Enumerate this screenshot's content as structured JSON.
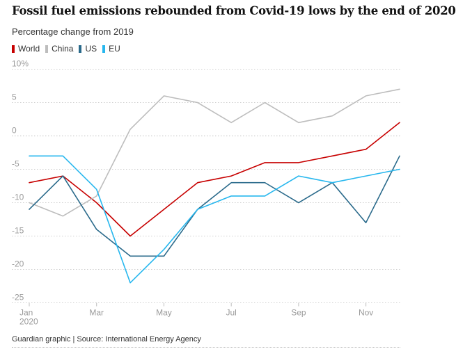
{
  "header": {
    "title": "Fossil fuel emissions rebounded from Covid-19 lows by the end of 2020",
    "subtitle": "Percentage change from 2019"
  },
  "footer": {
    "source": "Guardian graphic | Source: International Energy Agency"
  },
  "chart_data": {
    "type": "line",
    "title": "Fossil fuel emissions rebounded from Covid-19 lows by the end of 2020",
    "subtitle": "Percentage change from 2019",
    "x": [
      "Jan 2020",
      "Feb 2020",
      "Mar 2020",
      "Apr 2020",
      "May 2020",
      "Jun 2020",
      "Jul 2020",
      "Aug 2020",
      "Sep 2020",
      "Oct 2020",
      "Nov 2020",
      "Dec 2020"
    ],
    "x_tick_labels": [
      "Jan",
      "Mar",
      "May",
      "Jul",
      "Sep",
      "Nov"
    ],
    "x_tick_sublabel": "2020",
    "ylim": [
      -25,
      10
    ],
    "y_ticks": [
      10,
      5,
      0,
      -5,
      -10,
      -15,
      -20,
      -25
    ],
    "y_tick_labels": [
      "10%",
      "5",
      "0",
      "-5",
      "-10",
      "-15",
      "-20",
      "-25"
    ],
    "grid": "horizontal dotted",
    "legend_position": "top-left",
    "series": [
      {
        "name": "World",
        "color": "#c70000",
        "values": [
          -7,
          -6,
          -10,
          -15,
          -11,
          -7,
          -6,
          -4,
          -4,
          -3,
          -2,
          2
        ]
      },
      {
        "name": "China",
        "color": "#bdbdbd",
        "values": [
          -10,
          -12,
          -9,
          1,
          6,
          5,
          2,
          5,
          2,
          3,
          6,
          7
        ]
      },
      {
        "name": "US",
        "color": "#2a6a8b",
        "values": [
          -11,
          -6,
          -14,
          -18,
          -18,
          -11,
          -7,
          -7,
          -10,
          -7,
          -13,
          -3
        ]
      },
      {
        "name": "EU",
        "color": "#27b7ee",
        "values": [
          -3,
          -3,
          -8,
          -22,
          -17,
          -11,
          -9,
          -9,
          -6,
          -7,
          -6,
          -5
        ]
      }
    ]
  }
}
